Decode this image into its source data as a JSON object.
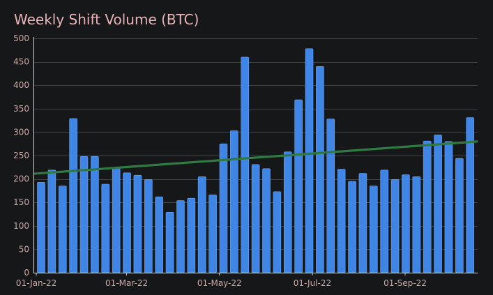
{
  "chart_data": {
    "type": "bar",
    "title": "Weekly Shift Volume (BTC)",
    "xlabel": "",
    "ylabel": "",
    "ylim": [
      0,
      500
    ],
    "yticks": [
      0,
      50,
      100,
      150,
      200,
      250,
      300,
      350,
      400,
      450,
      500
    ],
    "xtick_labels": [
      "01-Jan-22",
      "01-Mar-22",
      "01-May-22",
      "01-Jul-22",
      "01-Sep-22"
    ],
    "xtick_bar_index": [
      -0.45,
      7.97,
      16.63,
      25.29,
      33.94
    ],
    "grid": true,
    "series": [
      {
        "name": "Weekly Shift Volume",
        "type": "bar",
        "color": "#3e85e6",
        "values": [
          193,
          219,
          185,
          329,
          248,
          248,
          189,
          225,
          213,
          208,
          199,
          162,
          129,
          154,
          159,
          205,
          166,
          275,
          303,
          460,
          231,
          222,
          173,
          258,
          369,
          478,
          440,
          328,
          221,
          195,
          212,
          185,
          219,
          199,
          209,
          205,
          281,
          294,
          280,
          244,
          331
        ]
      },
      {
        "name": "Trend",
        "type": "line",
        "color": "#2f7a43",
        "start": 211,
        "end": 280
      }
    ]
  },
  "colors": {
    "background": "#161719",
    "grid": "#3f4247",
    "axis": "#d8d8d8",
    "title": "#e6b4b8",
    "tick_text": "#c9a8a8"
  }
}
